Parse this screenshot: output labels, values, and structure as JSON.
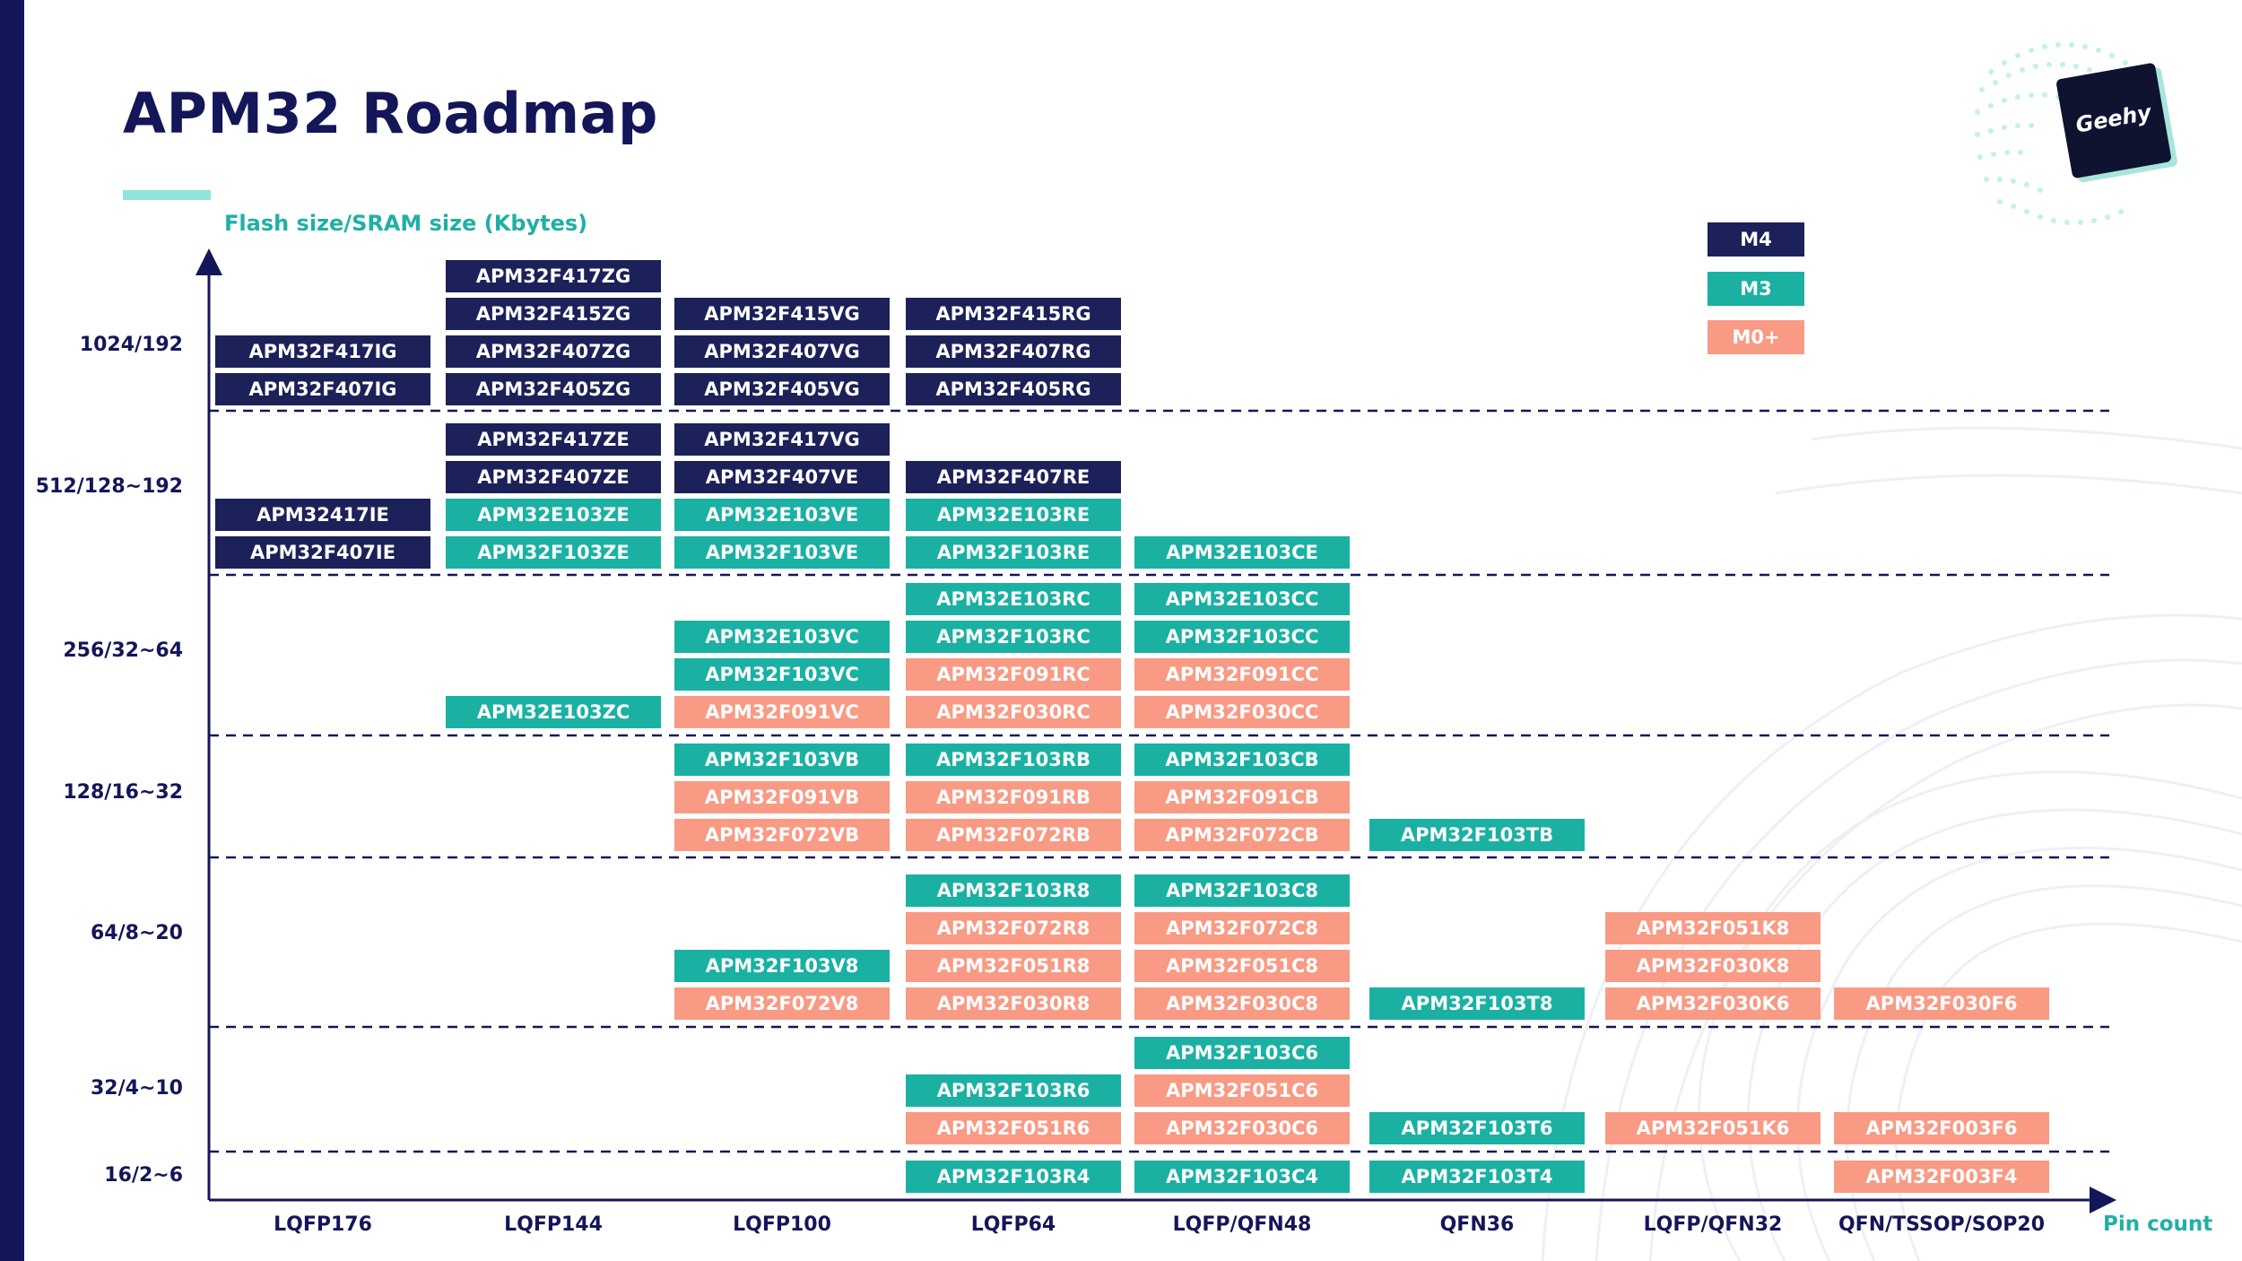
{
  "title": "APM32 Roadmap",
  "y_axis_title": "Flash size/SRAM size (Kbytes)",
  "x_axis_title": "Pin count",
  "logo_text": "Geehy",
  "y_levels": [
    "1024/192",
    "512/128~192",
    "256/32~64",
    "128/16~32",
    "64/8~20",
    "32/4~10",
    "16/2~6"
  ],
  "packages": [
    "LQFP176",
    "LQFP144",
    "LQFP100",
    "LQFP64",
    "LQFP/QFN48",
    "QFN36",
    "LQFP/QFN32",
    "QFN/TSSOP/SOP20"
  ],
  "legend": [
    {
      "label": "M4",
      "class": "M4"
    },
    {
      "label": "M3",
      "class": "M3"
    },
    {
      "label": "M0+",
      "class": "M0"
    }
  ],
  "colors": {
    "M4": "#1c2159",
    "M3": "#1ab1a3",
    "M0+": "#f99a84",
    "axis_title": "#1fb0a5",
    "title": "#14165a"
  },
  "parts": [
    {
      "pkg": 0,
      "level": 0,
      "core": "M4",
      "name": "APM32F417IG"
    },
    {
      "pkg": 0,
      "level": 0,
      "core": "M4",
      "name": "APM32F407IG"
    },
    {
      "pkg": 1,
      "level": 0,
      "core": "M4",
      "name": "APM32F417ZG"
    },
    {
      "pkg": 1,
      "level": 0,
      "core": "M4",
      "name": "APM32F415ZG"
    },
    {
      "pkg": 1,
      "level": 0,
      "core": "M4",
      "name": "APM32F407ZG"
    },
    {
      "pkg": 1,
      "level": 0,
      "core": "M4",
      "name": "APM32F405ZG"
    },
    {
      "pkg": 2,
      "level": 0,
      "core": "M4",
      "name": "APM32F415VG"
    },
    {
      "pkg": 2,
      "level": 0,
      "core": "M4",
      "name": "APM32F407VG"
    },
    {
      "pkg": 2,
      "level": 0,
      "core": "M4",
      "name": "APM32F405VG"
    },
    {
      "pkg": 3,
      "level": 0,
      "core": "M4",
      "name": "APM32F415RG"
    },
    {
      "pkg": 3,
      "level": 0,
      "core": "M4",
      "name": "APM32F407RG"
    },
    {
      "pkg": 3,
      "level": 0,
      "core": "M4",
      "name": "APM32F405RG"
    },
    {
      "pkg": 0,
      "level": 1,
      "core": "M4",
      "name": "APM32417IE"
    },
    {
      "pkg": 0,
      "level": 1,
      "core": "M4",
      "name": "APM32F407IE"
    },
    {
      "pkg": 1,
      "level": 1,
      "core": "M4",
      "name": "APM32F417ZE"
    },
    {
      "pkg": 1,
      "level": 1,
      "core": "M4",
      "name": "APM32F407ZE"
    },
    {
      "pkg": 1,
      "level": 1,
      "core": "M3",
      "name": "APM32E103ZE"
    },
    {
      "pkg": 1,
      "level": 1,
      "core": "M3",
      "name": "APM32F103ZE"
    },
    {
      "pkg": 2,
      "level": 1,
      "core": "M4",
      "name": "APM32F417VG"
    },
    {
      "pkg": 2,
      "level": 1,
      "core": "M4",
      "name": "APM32F407VE"
    },
    {
      "pkg": 2,
      "level": 1,
      "core": "M3",
      "name": "APM32E103VE"
    },
    {
      "pkg": 2,
      "level": 1,
      "core": "M3",
      "name": "APM32F103VE"
    },
    {
      "pkg": 3,
      "level": 1,
      "core": "M4",
      "name": "APM32F407RE"
    },
    {
      "pkg": 3,
      "level": 1,
      "core": "M3",
      "name": "APM32E103RE"
    },
    {
      "pkg": 3,
      "level": 1,
      "core": "M3",
      "name": "APM32F103RE"
    },
    {
      "pkg": 4,
      "level": 1,
      "core": "M3",
      "name": "APM32E103CE"
    },
    {
      "pkg": 1,
      "level": 2,
      "core": "M3",
      "name": "APM32E103ZC"
    },
    {
      "pkg": 2,
      "level": 2,
      "core": "M3",
      "name": "APM32E103VC"
    },
    {
      "pkg": 2,
      "level": 2,
      "core": "M3",
      "name": "APM32F103VC"
    },
    {
      "pkg": 2,
      "level": 2,
      "core": "M0+",
      "name": "APM32F091VC"
    },
    {
      "pkg": 3,
      "level": 2,
      "core": "M3",
      "name": "APM32E103RC"
    },
    {
      "pkg": 3,
      "level": 2,
      "core": "M3",
      "name": "APM32F103RC"
    },
    {
      "pkg": 3,
      "level": 2,
      "core": "M0+",
      "name": "APM32F091RC"
    },
    {
      "pkg": 3,
      "level": 2,
      "core": "M0+",
      "name": "APM32F030RC"
    },
    {
      "pkg": 4,
      "level": 2,
      "core": "M3",
      "name": "APM32E103CC"
    },
    {
      "pkg": 4,
      "level": 2,
      "core": "M3",
      "name": "APM32F103CC"
    },
    {
      "pkg": 4,
      "level": 2,
      "core": "M0+",
      "name": "APM32F091CC"
    },
    {
      "pkg": 4,
      "level": 2,
      "core": "M0+",
      "name": "APM32F030CC"
    },
    {
      "pkg": 2,
      "level": 3,
      "core": "M3",
      "name": "APM32F103VB"
    },
    {
      "pkg": 2,
      "level": 3,
      "core": "M0+",
      "name": "APM32F091VB"
    },
    {
      "pkg": 2,
      "level": 3,
      "core": "M0+",
      "name": "APM32F072VB"
    },
    {
      "pkg": 3,
      "level": 3,
      "core": "M3",
      "name": "APM32F103RB"
    },
    {
      "pkg": 3,
      "level": 3,
      "core": "M0+",
      "name": "APM32F091RB"
    },
    {
      "pkg": 3,
      "level": 3,
      "core": "M0+",
      "name": "APM32F072RB"
    },
    {
      "pkg": 4,
      "level": 3,
      "core": "M3",
      "name": "APM32F103CB"
    },
    {
      "pkg": 4,
      "level": 3,
      "core": "M0+",
      "name": "APM32F091CB"
    },
    {
      "pkg": 4,
      "level": 3,
      "core": "M0+",
      "name": "APM32F072CB"
    },
    {
      "pkg": 5,
      "level": 3,
      "core": "M3",
      "name": "APM32F103TB"
    },
    {
      "pkg": 2,
      "level": 4,
      "core": "M3",
      "name": "APM32F103V8"
    },
    {
      "pkg": 2,
      "level": 4,
      "core": "M0+",
      "name": "APM32F072V8"
    },
    {
      "pkg": 3,
      "level": 4,
      "core": "M3",
      "name": "APM32F103R8"
    },
    {
      "pkg": 3,
      "level": 4,
      "core": "M0+",
      "name": "APM32F072R8"
    },
    {
      "pkg": 3,
      "level": 4,
      "core": "M0+",
      "name": "APM32F051R8"
    },
    {
      "pkg": 3,
      "level": 4,
      "core": "M0+",
      "name": "APM32F030R8"
    },
    {
      "pkg": 4,
      "level": 4,
      "core": "M3",
      "name": "APM32F103C8"
    },
    {
      "pkg": 4,
      "level": 4,
      "core": "M0+",
      "name": "APM32F072C8"
    },
    {
      "pkg": 4,
      "level": 4,
      "core": "M0+",
      "name": "APM32F051C8"
    },
    {
      "pkg": 4,
      "level": 4,
      "core": "M0+",
      "name": "APM32F030C8"
    },
    {
      "pkg": 5,
      "level": 4,
      "core": "M3",
      "name": "APM32F103T8"
    },
    {
      "pkg": 6,
      "level": 4,
      "core": "M0+",
      "name": "APM32F051K8"
    },
    {
      "pkg": 6,
      "level": 4,
      "core": "M0+",
      "name": "APM32F030K8"
    },
    {
      "pkg": 6,
      "level": 4,
      "core": "M0+",
      "name": "APM32F030K6"
    },
    {
      "pkg": 7,
      "level": 4,
      "core": "M0+",
      "name": "APM32F030F6"
    },
    {
      "pkg": 3,
      "level": 5,
      "core": "M3",
      "name": "APM32F103R6"
    },
    {
      "pkg": 3,
      "level": 5,
      "core": "M0+",
      "name": "APM32F051R6"
    },
    {
      "pkg": 4,
      "level": 5,
      "core": "M3",
      "name": "APM32F103C6"
    },
    {
      "pkg": 4,
      "level": 5,
      "core": "M0+",
      "name": "APM32F051C6"
    },
    {
      "pkg": 4,
      "level": 5,
      "core": "M0+",
      "name": "APM32F030C6"
    },
    {
      "pkg": 5,
      "level": 5,
      "core": "M3",
      "name": "APM32F103T6"
    },
    {
      "pkg": 6,
      "level": 5,
      "core": "M0+",
      "name": "APM32F051K6"
    },
    {
      "pkg": 7,
      "level": 5,
      "core": "M0+",
      "name": "APM32F003F6"
    },
    {
      "pkg": 3,
      "level": 6,
      "core": "M3",
      "name": "APM32F103R4"
    },
    {
      "pkg": 4,
      "level": 6,
      "core": "M3",
      "name": "APM32F103C4"
    },
    {
      "pkg": 5,
      "level": 6,
      "core": "M3",
      "name": "APM32F103T4"
    },
    {
      "pkg": 7,
      "level": 6,
      "core": "M0+",
      "name": "APM32F003F4"
    }
  ]
}
